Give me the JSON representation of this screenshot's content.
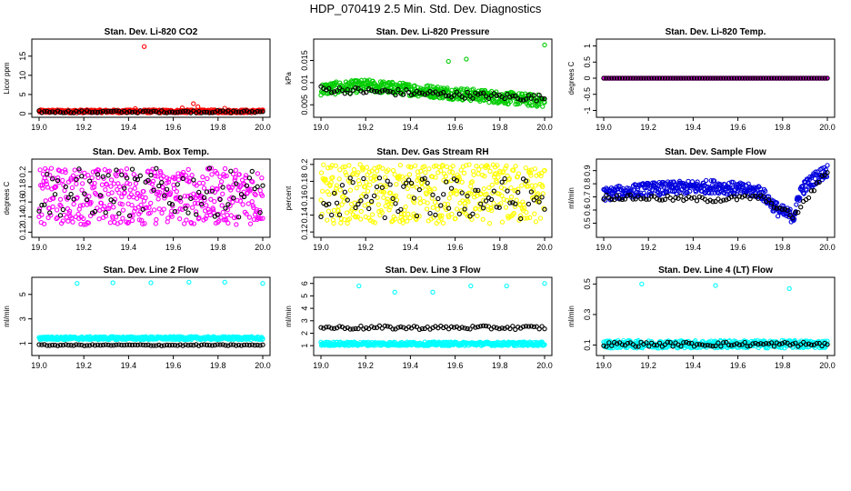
{
  "title": "HDP_070419  2.5 Min. Std. Dev. Diagnostics",
  "chart_data": [
    {
      "type": "scatter",
      "title": "Stan. Dev. Li-820 CO2",
      "ylabel": "Licor ppm",
      "color": "#ff0000",
      "xlim": [
        19.0,
        20.0
      ],
      "ylim": [
        0,
        18.5
      ],
      "xticks": [
        "19.0",
        "19.2",
        "19.4",
        "19.6",
        "19.8",
        "20.0"
      ],
      "yticks": [
        0,
        5,
        10,
        15
      ],
      "series": [
        {
          "name": "main",
          "band": [
            0.2,
            1.0
          ],
          "outliers": [
            [
              19.47,
              17.5
            ],
            [
              19.69,
              2.6
            ],
            [
              19.71,
              1.8
            ],
            [
              19.64,
              1.5
            ],
            [
              19.83,
              1.4
            ],
            [
              19.43,
              1.3
            ]
          ]
        },
        {
          "name": "black",
          "band": [
            0.2,
            0.8
          ]
        }
      ]
    },
    {
      "type": "scatter",
      "title": "Stan. Dev. Li-820 Pressure",
      "ylabel": "kPa",
      "color": "#00cc00",
      "xlim": [
        19.0,
        20.0
      ],
      "ylim": [
        0.003,
        0.019
      ],
      "xticks": [
        "19.0",
        "19.2",
        "19.4",
        "19.6",
        "19.8",
        "20.0"
      ],
      "yticks": [
        0.005,
        0.01,
        0.015
      ],
      "series": [
        {
          "name": "main",
          "trend": [
            [
              19.0,
              0.0085
            ],
            [
              19.2,
              0.0093
            ],
            [
              19.5,
              0.008
            ],
            [
              20.0,
              0.0058
            ]
          ],
          "spread": 0.0028,
          "outliers": [
            [
              20.0,
              0.0185
            ],
            [
              19.65,
              0.0153
            ],
            [
              19.57,
              0.0148
            ]
          ]
        },
        {
          "name": "black",
          "trend": [
            [
              19.0,
              0.0085
            ],
            [
              20.0,
              0.0065
            ]
          ],
          "spread": 0.0015
        }
      ]
    },
    {
      "type": "scatter",
      "title": "Stan. Dev. Li-820 Temp.",
      "ylabel": "degrees C",
      "color": "#ff00ff",
      "xlim": [
        19.0,
        20.0
      ],
      "ylim": [
        -1.1,
        1.1
      ],
      "xticks": [
        "19.0",
        "19.2",
        "19.4",
        "19.6",
        "19.8",
        "20.0"
      ],
      "yticks": [
        -1.0,
        -0.5,
        0.0,
        0.5,
        1.0
      ],
      "series": [
        {
          "name": "main",
          "band": [
            0.0,
            0.0
          ]
        },
        {
          "name": "black",
          "band": [
            0.0,
            0.0
          ]
        }
      ]
    },
    {
      "type": "scatter",
      "title": "Stan. Dev. Amb. Box Temp.",
      "ylabel": "degrees C",
      "color": "#ff00ff",
      "xlim": [
        19.0,
        20.0
      ],
      "ylim": [
        0.118,
        0.212
      ],
      "xticks": [
        "19.0",
        "19.2",
        "19.4",
        "19.6",
        "19.8",
        "20.0"
      ],
      "yticks": [
        0.12,
        0.14,
        0.16,
        0.18,
        0.2
      ],
      "series": [
        {
          "name": "main",
          "band": [
            0.13,
            0.205
          ]
        },
        {
          "name": "black",
          "band": [
            0.14,
            0.205
          ]
        }
      ]
    },
    {
      "type": "scatter",
      "title": "Stan. Dev. Gas Stream RH",
      "ylabel": "percent",
      "color": "#ffff00",
      "xlim": [
        19.0,
        20.0
      ],
      "ylim": [
        0.118,
        0.202
      ],
      "xticks": [
        "19.0",
        "19.2",
        "19.4",
        "19.6",
        "19.8",
        "20.0"
      ],
      "yticks": [
        0.12,
        0.14,
        0.16,
        0.18,
        0.2
      ],
      "series": [
        {
          "name": "main",
          "band": [
            0.13,
            0.2
          ]
        },
        {
          "name": "black",
          "band": [
            0.135,
            0.185
          ]
        }
      ]
    },
    {
      "type": "scatter",
      "title": "Stan. Dev. Sample Flow",
      "ylabel": "ml/min",
      "color": "#0000dd",
      "xlim": [
        19.0,
        20.0
      ],
      "ylim": [
        0.42,
        0.96
      ],
      "xticks": [
        "19.0",
        "19.2",
        "19.4",
        "19.6",
        "19.8",
        "20.0"
      ],
      "yticks": [
        0.5,
        0.6,
        0.7,
        0.8,
        0.9
      ],
      "series": [
        {
          "name": "main",
          "trend": [
            [
              19.0,
              0.72
            ],
            [
              19.2,
              0.76
            ],
            [
              19.5,
              0.78
            ],
            [
              19.7,
              0.74
            ],
            [
              19.78,
              0.6
            ],
            [
              19.85,
              0.55
            ],
            [
              19.88,
              0.75
            ],
            [
              19.95,
              0.85
            ],
            [
              20.0,
              0.9
            ]
          ],
          "spread": 0.1
        },
        {
          "name": "black",
          "trend": [
            [
              19.0,
              0.7
            ],
            [
              19.5,
              0.68
            ],
            [
              19.7,
              0.7
            ],
            [
              19.85,
              0.55
            ],
            [
              20.0,
              0.9
            ]
          ],
          "spread": 0.04
        }
      ]
    },
    {
      "type": "scatter",
      "title": "Stan. Dev. Line 2 Flow",
      "ylabel": "ml/min",
      "color": "#00ffff",
      "xlim": [
        19.0,
        20.0
      ],
      "ylim": [
        0.3,
        6.1
      ],
      "xticks": [
        "19.0",
        "19.2",
        "19.4",
        "19.6",
        "19.8",
        "20.0"
      ],
      "yticks": [
        1,
        3,
        5
      ],
      "series": [
        {
          "name": "main",
          "band": [
            1.3,
            1.55
          ],
          "outliers": [
            [
              19.17,
              5.9
            ],
            [
              19.33,
              5.95
            ],
            [
              19.5,
              5.95
            ],
            [
              19.67,
              6.0
            ],
            [
              19.83,
              6.0
            ],
            [
              20.0,
              5.9
            ]
          ]
        },
        {
          "name": "black",
          "band": [
            0.8,
            0.9
          ]
        }
      ]
    },
    {
      "type": "scatter",
      "title": "Stan. Dev. Line 3 Flow",
      "ylabel": "ml/min",
      "color": "#00ffff",
      "xlim": [
        19.0,
        20.0
      ],
      "ylim": [
        0.5,
        6.2
      ],
      "xticks": [
        "19.0",
        "19.2",
        "19.4",
        "19.6",
        "19.8",
        "20.0"
      ],
      "yticks": [
        1,
        2,
        3,
        4,
        5,
        6
      ],
      "series": [
        {
          "name": "main",
          "band": [
            1.0,
            1.3
          ],
          "outliers": [
            [
              19.17,
              5.8
            ],
            [
              19.33,
              5.3
            ],
            [
              19.5,
              5.3
            ],
            [
              19.67,
              5.8
            ],
            [
              19.83,
              5.8
            ],
            [
              20.0,
              6.0
            ]
          ]
        },
        {
          "name": "black",
          "band": [
            2.3,
            2.6
          ]
        }
      ]
    },
    {
      "type": "scatter",
      "title": "Stan. Dev. Line 4 (LT) Flow",
      "ylabel": "ml/min",
      "color": "#00ffff",
      "xlim": [
        19.0,
        20.0
      ],
      "ylim": [
        0.055,
        0.52
      ],
      "xticks": [
        "19.0",
        "19.2",
        "19.4",
        "19.6",
        "19.8",
        "20.0"
      ],
      "yticks": [
        0.1,
        0.3,
        0.5
      ],
      "series": [
        {
          "name": "main",
          "band": [
            0.08,
            0.13
          ],
          "outliers": [
            [
              19.17,
              0.5
            ],
            [
              19.5,
              0.49
            ],
            [
              19.83,
              0.47
            ]
          ]
        },
        {
          "name": "black",
          "band": [
            0.09,
            0.12
          ]
        }
      ]
    }
  ]
}
